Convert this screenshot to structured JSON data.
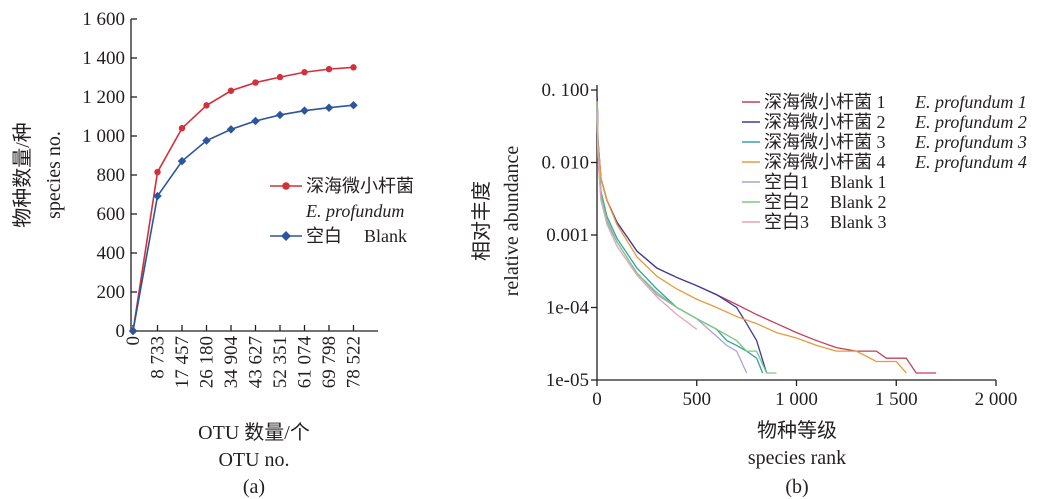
{
  "chart_data": [
    {
      "panel": "(a)",
      "type": "line",
      "xlabel": [
        "OTU 数量/个",
        "OTU no."
      ],
      "ylabel": [
        "物种数量/种",
        "species no."
      ],
      "x": [
        0,
        8733,
        17457,
        26180,
        34904,
        43627,
        52351,
        61074,
        69798,
        78522
      ],
      "x_tick_labels": [
        "0",
        "8 733",
        "17 457",
        "26 180",
        "34 904",
        "43 627",
        "52 351",
        "61 074",
        "69 798",
        "78 522"
      ],
      "ylim": [
        0,
        1600
      ],
      "yticks": [
        0,
        200,
        400,
        600,
        800,
        1000,
        1200,
        1400,
        1600
      ],
      "y_tick_labels": [
        "0",
        "200",
        "400",
        "600",
        "800",
        "1 000",
        "1 200",
        "1 400",
        "1 600"
      ],
      "legend_position": "right",
      "series": [
        {
          "name": "深海微小杆菌",
          "name_italic": "E. profundum",
          "color": "#d3303a",
          "marker": "circle",
          "values": [
            0,
            815,
            1040,
            1157,
            1232,
            1274,
            1302,
            1327,
            1343,
            1352
          ]
        },
        {
          "name": "空白",
          "name_en": "Blank",
          "color": "#2c55a0",
          "marker": "diamond",
          "values": [
            0,
            692,
            871,
            976,
            1034,
            1077,
            1108,
            1130,
            1145,
            1158
          ]
        }
      ]
    },
    {
      "panel": "(b)",
      "type": "line",
      "xlabel": [
        "物种等级",
        "species rank"
      ],
      "ylabel": [
        "相对丰度",
        "relative abundance"
      ],
      "xlim": [
        0,
        2000
      ],
      "xticks": [
        0,
        500,
        1000,
        1500,
        2000
      ],
      "x_tick_labels": [
        "0",
        "500",
        "1 000",
        "1 500",
        "2 000"
      ],
      "yscale": "log",
      "ylim": [
        1e-05,
        0.1
      ],
      "yticks": [
        0.1,
        0.01,
        0.001,
        0.0001,
        1e-05
      ],
      "y_tick_labels": [
        "0. 100",
        "0. 010",
        "0.001",
        "1e-04",
        "1e-05"
      ],
      "legend_position": "top-right",
      "series": [
        {
          "name": "深海微小杆菌 1",
          "name_italic": "E. profundum 1",
          "color": "#c0405e",
          "x": [
            1,
            5,
            20,
            50,
            100,
            200,
            300,
            400,
            500,
            600,
            700,
            800,
            900,
            1000,
            1100,
            1200,
            1300,
            1400,
            1450,
            1550,
            1600,
            1700
          ],
          "y": [
            0.08,
            0.02,
            0.006,
            0.003,
            0.0015,
            0.0006,
            0.00035,
            0.00026,
            0.0002,
            0.00015,
            0.00011,
            8e-05,
            6e-05,
            4.5e-05,
            3.5e-05,
            2.8e-05,
            2.5e-05,
            2.5e-05,
            2e-05,
            2e-05,
            1.25e-05,
            1.25e-05
          ]
        },
        {
          "name": "深海微小杆菌 2",
          "name_italic": "E. profundum 2",
          "color": "#3a3d9c",
          "x": [
            1,
            5,
            20,
            50,
            100,
            200,
            300,
            400,
            500,
            600,
            700,
            750,
            800,
            850
          ],
          "y": [
            0.08,
            0.02,
            0.006,
            0.003,
            0.0015,
            0.0006,
            0.00035,
            0.00026,
            0.0002,
            0.00015,
            0.0001,
            6e-05,
            3.5e-05,
            1.25e-05
          ]
        },
        {
          "name": "深海微小杆菌 3",
          "name_italic": "E. profundum 3",
          "color": "#3a9fa3",
          "x": [
            1,
            5,
            20,
            50,
            100,
            200,
            300,
            400,
            500,
            600,
            650,
            700,
            750,
            800,
            830
          ],
          "y": [
            0.07,
            0.015,
            0.004,
            0.0018,
            0.0009,
            0.00035,
            0.00018,
            0.0001,
            7e-05,
            5e-05,
            3.5e-05,
            3e-05,
            2.5e-05,
            2e-05,
            1.25e-05
          ]
        },
        {
          "name": "深海微小杆菌 4",
          "name_italic": "E. profundum 4",
          "color": "#e89a3c",
          "x": [
            1,
            5,
            20,
            50,
            100,
            200,
            300,
            400,
            500,
            600,
            700,
            800,
            900,
            1000,
            1100,
            1200,
            1300,
            1400,
            1500,
            1550
          ],
          "y": [
            0.07,
            0.02,
            0.006,
            0.003,
            0.0014,
            0.0005,
            0.00027,
            0.00018,
            0.00013,
            0.0001,
            7.5e-05,
            6e-05,
            4.5e-05,
            3.8e-05,
            3e-05,
            2.5e-05,
            2.5e-05,
            1.8e-05,
            1.8e-05,
            1.25e-05
          ]
        },
        {
          "name": "空白1",
          "name_en": "Blank 1",
          "color": "#a9a3d0",
          "x": [
            1,
            5,
            20,
            50,
            100,
            200,
            300,
            400,
            500,
            600,
            650,
            700,
            750
          ],
          "y": [
            0.06,
            0.012,
            0.003,
            0.0015,
            0.0008,
            0.0003,
            0.00015,
            0.0001,
            7e-05,
            4e-05,
            3e-05,
            2.5e-05,
            1.25e-05
          ]
        },
        {
          "name": "空白2",
          "name_en": "Blank 2",
          "color": "#7ec87a",
          "x": [
            1,
            5,
            20,
            50,
            100,
            200,
            300,
            400,
            500,
            600,
            700,
            750,
            800,
            850,
            900
          ],
          "y": [
            0.06,
            0.014,
            0.0035,
            0.0016,
            0.0008,
            0.0003,
            0.00016,
            0.0001,
            7e-05,
            5e-05,
            3.5e-05,
            2.5e-05,
            2.5e-05,
            1.25e-05,
            1.25e-05
          ]
        },
        {
          "name": "空白3",
          "name_en": "Blank 3",
          "color": "#e3a3c2",
          "x": [
            1,
            5,
            20,
            50,
            100,
            200,
            300,
            400,
            500
          ],
          "y": [
            0.05,
            0.012,
            0.003,
            0.0014,
            0.0007,
            0.00028,
            0.00014,
            8e-05,
            5e-05
          ]
        }
      ]
    }
  ]
}
